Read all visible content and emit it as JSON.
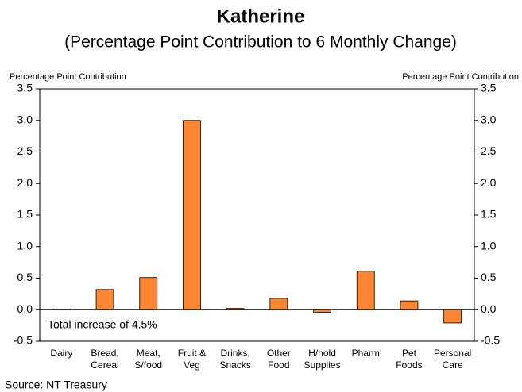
{
  "chart_data": {
    "type": "bar",
    "title": "Katherine",
    "subtitle": "(Percentage Point Contribution to 6 Monthly Change)",
    "y_label": "Percentage Point Contribution",
    "y2_label": "Percentage Point Contribution",
    "annotation": "Total increase of 4.5%",
    "source": "Source: NT Treasury",
    "categories": [
      [
        "Dairy"
      ],
      [
        "Bread,",
        "Cereal"
      ],
      [
        "Meat,",
        "S/food"
      ],
      [
        "Fruit &",
        "Veg"
      ],
      [
        "Drinks,",
        "Snacks"
      ],
      [
        "Other",
        "Food"
      ],
      [
        "H/hold",
        "Supplies"
      ],
      [
        "Pharm"
      ],
      [
        "Pet",
        "Foods"
      ],
      [
        "Personal",
        "Care"
      ]
    ],
    "values": [
      0.01,
      0.32,
      0.51,
      3.0,
      0.02,
      0.18,
      -0.04,
      0.61,
      0.14,
      -0.21
    ],
    "color": "#ff8533",
    "ylim": [
      -0.5,
      3.5
    ],
    "yticks": [
      -0.5,
      {
        "value": 0,
        "label": "0.0"
      },
      0.5,
      {
        "value": 1,
        "label": "1.0"
      },
      1.5,
      {
        "value": 2,
        "label": "2.0"
      },
      2.5,
      {
        "value": 3,
        "label": "3.0"
      },
      3.5
    ],
    "y2lim": [
      -0.5,
      3.5
    ],
    "y2ticks": [
      -0.5,
      {
        "value": 0,
        "label": "0.0"
      },
      0.5,
      {
        "value": 1,
        "label": "1.0"
      },
      1.5,
      {
        "value": 2,
        "label": "2.0"
      },
      2.5,
      {
        "value": 3,
        "label": "3.0"
      },
      3.5
    ],
    "grid": false
  }
}
